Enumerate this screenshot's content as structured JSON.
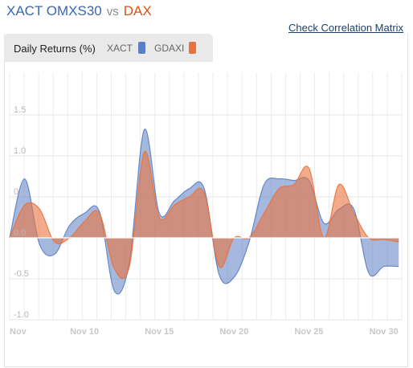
{
  "header": {
    "symbol_a": "XACT OMXS30",
    "vs": "vs",
    "symbol_b": "DAX",
    "link": "Check Correlation Matrix"
  },
  "tab": {
    "label": "Daily Returns (%)"
  },
  "colors": {
    "xact": "#5b7fc4",
    "gdaxi": "#e9733e",
    "accent_a": "#3a67b0",
    "accent_b": "#d9531e"
  },
  "chart_data": {
    "type": "area",
    "title": "",
    "xlabel": "",
    "ylabel": "",
    "ylim": [
      -1.0,
      1.5
    ],
    "yticks": [
      "1.5",
      "1.0",
      "0.5",
      "0.0",
      "-0.5",
      "-1.0"
    ],
    "ytick_values": [
      1.5,
      1.0,
      0.5,
      0.0,
      -0.5,
      -1.0
    ],
    "xticks": [
      "Nov",
      "Nov 10",
      "Nov 15",
      "Nov 20",
      "Nov 25",
      "Nov 30"
    ],
    "xtick_days": [
      5,
      10,
      15,
      20,
      25,
      30
    ],
    "grid": true,
    "legend": "top-left",
    "series": [
      {
        "name": "XACT",
        "color": "#5b7fc4",
        "points": [
          [
            5,
            0.0
          ],
          [
            6,
            0.72
          ],
          [
            7,
            -0.08
          ],
          [
            8,
            -0.2
          ],
          [
            9,
            0.15
          ],
          [
            10,
            0.3
          ],
          [
            11,
            0.32
          ],
          [
            12,
            -0.65
          ],
          [
            13,
            -0.3
          ],
          [
            14,
            1.32
          ],
          [
            15,
            0.3
          ],
          [
            16,
            0.45
          ],
          [
            17,
            0.6
          ],
          [
            18,
            0.6
          ],
          [
            19,
            -0.45
          ],
          [
            20,
            -0.48
          ],
          [
            21,
            -0.05
          ],
          [
            22,
            0.65
          ],
          [
            23,
            0.72
          ],
          [
            24,
            0.7
          ],
          [
            25,
            0.7
          ],
          [
            26,
            0.18
          ],
          [
            27,
            0.35
          ],
          [
            28,
            0.35
          ],
          [
            29,
            -0.43
          ],
          [
            30,
            -0.35
          ],
          [
            31,
            -0.35
          ]
        ]
      },
      {
        "name": "GDAXI",
        "color": "#e9733e",
        "points": [
          [
            5,
            0.0
          ],
          [
            6,
            0.4
          ],
          [
            7,
            0.35
          ],
          [
            8,
            -0.05
          ],
          [
            9,
            0.0
          ],
          [
            10,
            0.2
          ],
          [
            11,
            0.3
          ],
          [
            12,
            -0.38
          ],
          [
            13,
            -0.35
          ],
          [
            14,
            1.05
          ],
          [
            15,
            0.25
          ],
          [
            16,
            0.4
          ],
          [
            17,
            0.5
          ],
          [
            18,
            0.55
          ],
          [
            19,
            -0.35
          ],
          [
            20,
            0.0
          ],
          [
            21,
            0.0
          ],
          [
            22,
            0.3
          ],
          [
            23,
            0.6
          ],
          [
            24,
            0.65
          ],
          [
            25,
            0.85
          ],
          [
            26,
            0.0
          ],
          [
            27,
            0.65
          ],
          [
            28,
            0.3
          ],
          [
            29,
            0.0
          ],
          [
            30,
            -0.02
          ],
          [
            31,
            -0.05
          ]
        ]
      }
    ]
  }
}
